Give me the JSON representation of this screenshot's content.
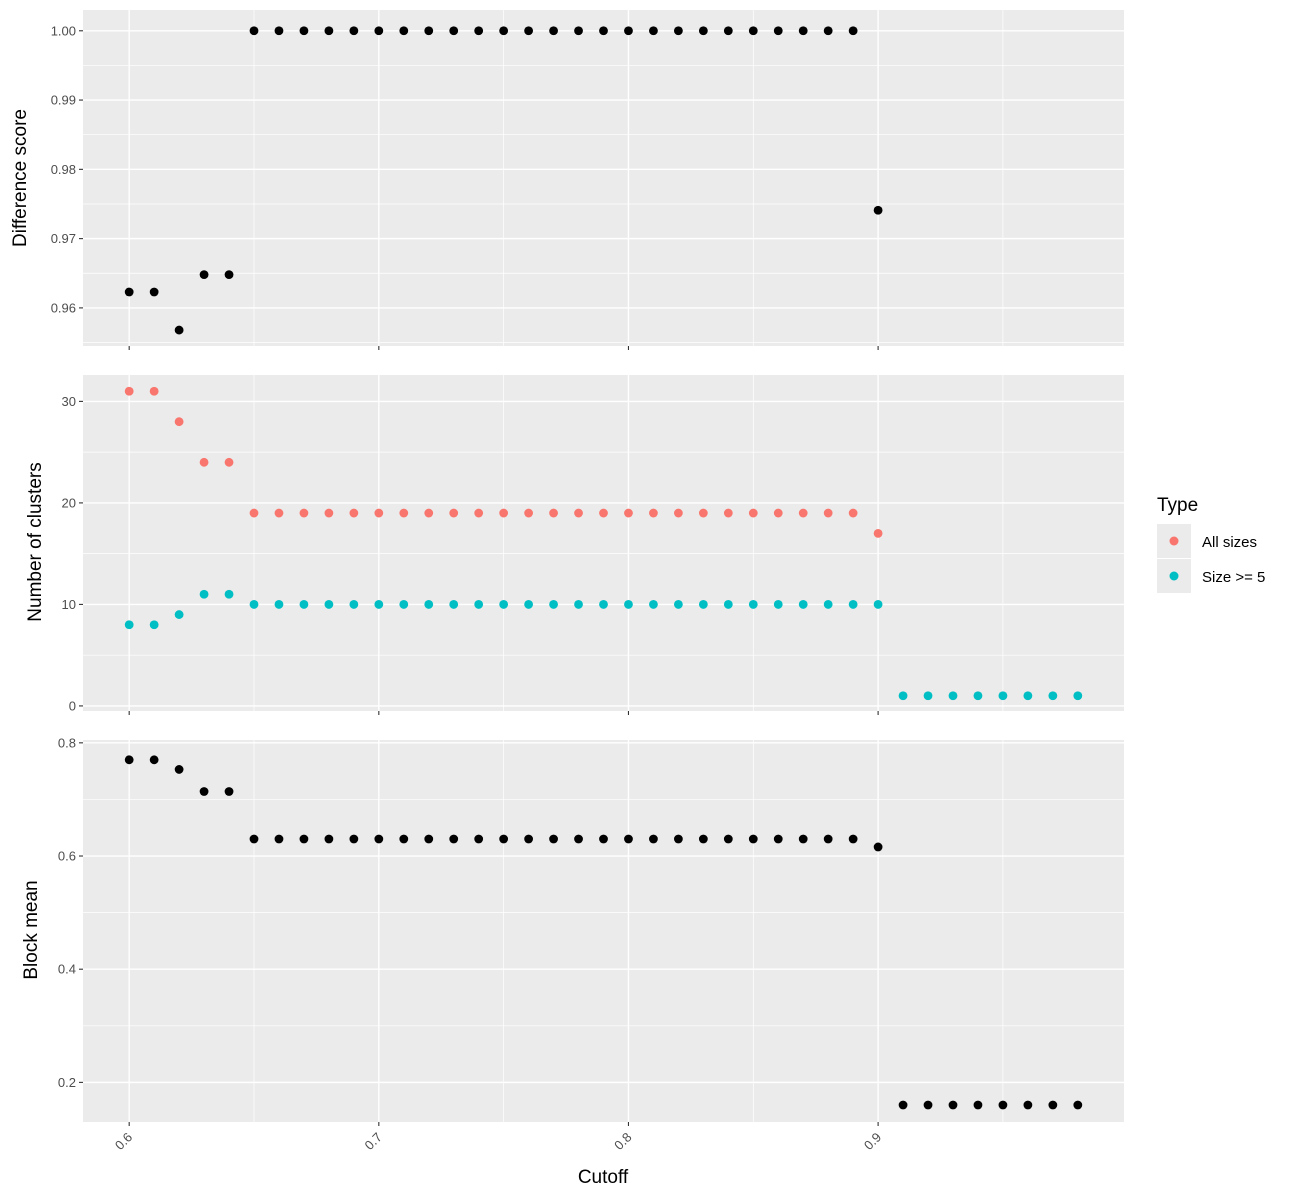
{
  "chart_data": [
    {
      "type": "scatter",
      "ylabel": "Difference score",
      "ylim": [
        0.9545,
        1.003
      ],
      "yticks": [
        "0.96",
        "0.97",
        "0.98",
        "0.99",
        "1.00"
      ],
      "series": [
        {
          "color": "#000000",
          "x": [
            0.6,
            0.61,
            0.62,
            0.63,
            0.64,
            0.65,
            0.66,
            0.67,
            0.68,
            0.69,
            0.7,
            0.71,
            0.72,
            0.73,
            0.74,
            0.75,
            0.76,
            0.77,
            0.78,
            0.79,
            0.8,
            0.81,
            0.82,
            0.83,
            0.84,
            0.85,
            0.86,
            0.87,
            0.88,
            0.89,
            0.9
          ],
          "y": [
            0.9623,
            0.9623,
            0.9568,
            0.9648,
            0.9648,
            1.0,
            1.0,
            1.0,
            1.0,
            1.0,
            1.0,
            1.0,
            1.0,
            1.0,
            1.0,
            1.0,
            1.0,
            1.0,
            1.0,
            1.0,
            1.0,
            1.0,
            1.0,
            1.0,
            1.0,
            1.0,
            1.0,
            1.0,
            1.0,
            1.0,
            0.9741
          ]
        }
      ]
    },
    {
      "type": "scatter",
      "ylabel": "Number of clusters",
      "ylim": [
        -0.5,
        32.6
      ],
      "yticks": [
        "0",
        "10",
        "20",
        "30"
      ],
      "legend": {
        "title": "Type",
        "position": "right"
      },
      "series": [
        {
          "name": "All sizes",
          "color": "#F8766D",
          "x": [
            0.6,
            0.61,
            0.62,
            0.63,
            0.64,
            0.65,
            0.66,
            0.67,
            0.68,
            0.69,
            0.7,
            0.71,
            0.72,
            0.73,
            0.74,
            0.75,
            0.76,
            0.77,
            0.78,
            0.79,
            0.8,
            0.81,
            0.82,
            0.83,
            0.84,
            0.85,
            0.86,
            0.87,
            0.88,
            0.89,
            0.9
          ],
          "y": [
            31,
            31,
            28,
            24,
            24,
            19,
            19,
            19,
            19,
            19,
            19,
            19,
            19,
            19,
            19,
            19,
            19,
            19,
            19,
            19,
            19,
            19,
            19,
            19,
            19,
            19,
            19,
            19,
            19,
            19,
            17
          ]
        },
        {
          "name": "Size >= 5",
          "color": "#00BFC4",
          "x": [
            0.6,
            0.61,
            0.62,
            0.63,
            0.64,
            0.65,
            0.66,
            0.67,
            0.68,
            0.69,
            0.7,
            0.71,
            0.72,
            0.73,
            0.74,
            0.75,
            0.76,
            0.77,
            0.78,
            0.79,
            0.8,
            0.81,
            0.82,
            0.83,
            0.84,
            0.85,
            0.86,
            0.87,
            0.88,
            0.89,
            0.9,
            0.91,
            0.92,
            0.93,
            0.94,
            0.95,
            0.96,
            0.97,
            0.98
          ],
          "y": [
            8,
            8,
            9,
            11,
            11,
            10,
            10,
            10,
            10,
            10,
            10,
            10,
            10,
            10,
            10,
            10,
            10,
            10,
            10,
            10,
            10,
            10,
            10,
            10,
            10,
            10,
            10,
            10,
            10,
            10,
            10,
            1,
            1,
            1,
            1,
            1,
            1,
            1,
            1
          ]
        }
      ]
    },
    {
      "type": "scatter",
      "ylabel": "Block mean",
      "xlabel": "Cutoff",
      "ylim": [
        0.13,
        0.805
      ],
      "yticks": [
        "0.2",
        "0.4",
        "0.6",
        "0.8"
      ],
      "series": [
        {
          "color": "#000000",
          "x": [
            0.6,
            0.61,
            0.62,
            0.63,
            0.64,
            0.65,
            0.66,
            0.67,
            0.68,
            0.69,
            0.7,
            0.71,
            0.72,
            0.73,
            0.74,
            0.75,
            0.76,
            0.77,
            0.78,
            0.79,
            0.8,
            0.81,
            0.82,
            0.83,
            0.84,
            0.85,
            0.86,
            0.87,
            0.88,
            0.89,
            0.9,
            0.91,
            0.92,
            0.93,
            0.94,
            0.95,
            0.96,
            0.97,
            0.98
          ],
          "y": [
            0.77,
            0.77,
            0.753,
            0.714,
            0.714,
            0.63,
            0.63,
            0.63,
            0.63,
            0.63,
            0.63,
            0.63,
            0.63,
            0.63,
            0.63,
            0.63,
            0.63,
            0.63,
            0.63,
            0.63,
            0.63,
            0.63,
            0.63,
            0.63,
            0.63,
            0.63,
            0.63,
            0.63,
            0.63,
            0.63,
            0.616,
            0.16,
            0.16,
            0.16,
            0.16,
            0.16,
            0.16,
            0.16,
            0.16
          ]
        }
      ]
    }
  ],
  "x_axis": {
    "label": "Cutoff",
    "xlim": [
      0.5815,
      0.9985
    ],
    "ticks": [
      "0.6",
      "0.7",
      "0.8",
      "0.9"
    ]
  },
  "legend": {
    "title": "Type",
    "items": [
      {
        "label": "All sizes",
        "color": "#F8766D"
      },
      {
        "label": "Size >= 5",
        "color": "#00BFC4"
      }
    ]
  }
}
